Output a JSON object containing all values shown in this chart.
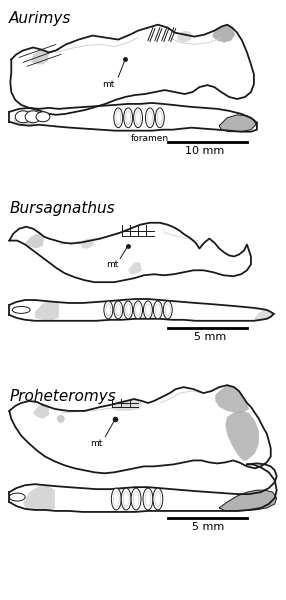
{
  "fig_width": 2.86,
  "fig_height": 6.0,
  "dpi": 100,
  "bg_color": "#ffffff",
  "lc": "#1a1a1a",
  "gc": "#aaaaaa",
  "lgc": "#cccccc",
  "lw_main": 1.3,
  "lw_thin": 0.7,
  "lw_inner": 0.6,
  "sections": [
    {
      "name": "Aurimys",
      "y_label": 0.972,
      "scale": "10 mm"
    },
    {
      "name": "Bursagnathus",
      "y_label": 0.63,
      "scale": "5 mm"
    },
    {
      "name": "Proheteromys",
      "y_label": 0.325,
      "scale": "5 mm"
    }
  ]
}
